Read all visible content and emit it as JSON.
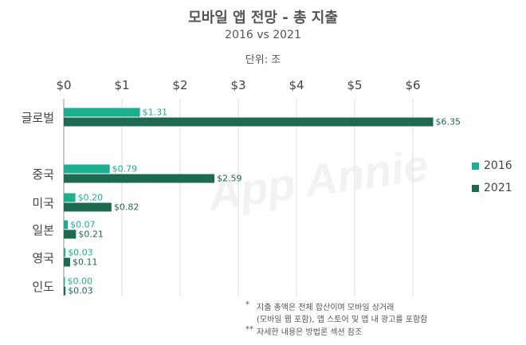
{
  "chart_data": {
    "type": "bar",
    "orientation": "horizontal",
    "title": "모바일 앱 전망 - 총 지출",
    "subtitle": "2016 vs 2021",
    "unit_label": "단위: 조",
    "categories": [
      "글로벌",
      "중국",
      "미국",
      "일본",
      "영국",
      "인도"
    ],
    "series": [
      {
        "name": "2016",
        "color": "#1aaf8e",
        "values": [
          1.31,
          0.79,
          0.2,
          0.07,
          0.03,
          0.0
        ],
        "labels": [
          "$1.31",
          "$0.79",
          "$0.20",
          "$0.07",
          "$0.03",
          "$0.00"
        ]
      },
      {
        "name": "2021",
        "color": "#1e6a50",
        "values": [
          6.35,
          2.59,
          0.82,
          0.21,
          0.11,
          0.03
        ],
        "labels": [
          "$6.35",
          "$2.59",
          "$0.82",
          "$0.21",
          "$0.11",
          "$0.03"
        ]
      }
    ],
    "x_ticks": [
      "$0",
      "$1",
      "$2",
      "$3",
      "$4",
      "$5",
      "$6"
    ],
    "xlim": [
      0,
      6.5
    ],
    "watermark": "App Annie"
  },
  "footnotes": {
    "note1_mark": "*",
    "note1_line1": "지출 총액은 전체 합산이며 모바일 상거래",
    "note1_line2": "(모바일 웹 포함), 앱 스토어 및 앱 내 광고를 포함함",
    "note2_mark": "**",
    "note2_line1": "자세한 내용은 방법론 섹션 참조"
  }
}
